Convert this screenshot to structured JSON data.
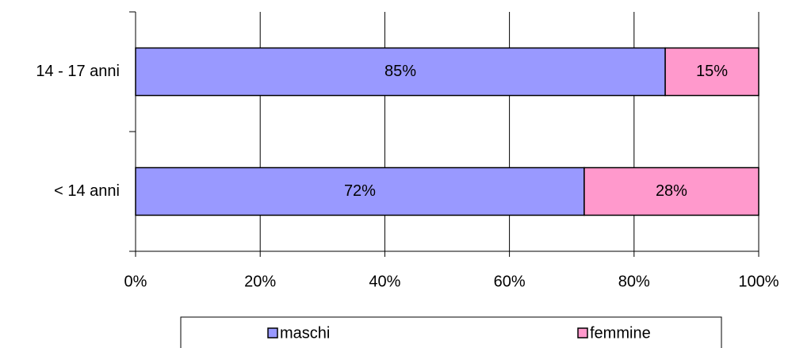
{
  "chart_data": {
    "type": "stacked-barh",
    "categories": [
      "14 - 17 anni",
      "< 14 anni"
    ],
    "series": [
      {
        "name": "maschi",
        "color": "#9999ff",
        "values": [
          85,
          72
        ],
        "value_labels": [
          "85%",
          "72%"
        ]
      },
      {
        "name": "femmine",
        "color": "#ff99cc",
        "values": [
          15,
          28
        ],
        "value_labels": [
          "15%",
          "28%"
        ]
      }
    ],
    "xlim": [
      0,
      100
    ],
    "xticks": [
      {
        "value": 0,
        "label": "0%"
      },
      {
        "value": 20,
        "label": "20%"
      },
      {
        "value": 40,
        "label": "40%"
      },
      {
        "value": 60,
        "label": "60%"
      },
      {
        "value": 80,
        "label": "80%"
      },
      {
        "value": 100,
        "label": "100%"
      }
    ],
    "grid": true,
    "legend": "bottom"
  }
}
